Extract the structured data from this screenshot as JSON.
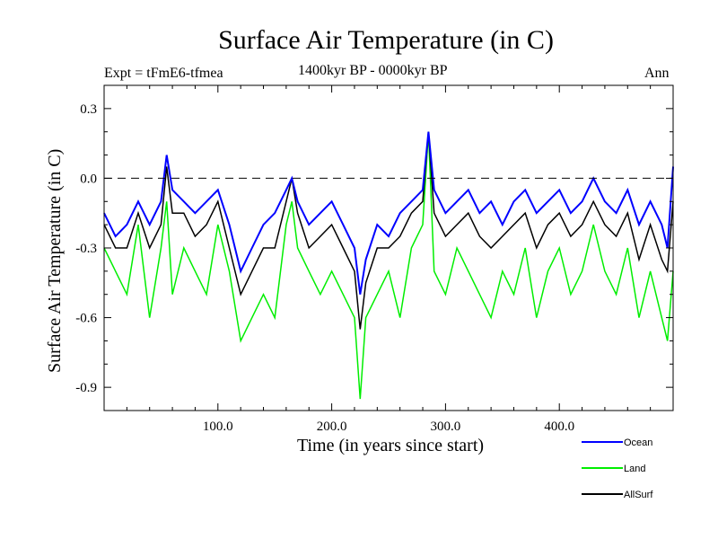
{
  "chart_data": {
    "type": "line",
    "title": "Surface Air Temperature (in C)",
    "subtitle_left": "Expt = tFmE6-tfmea",
    "subtitle_center": "1400kyr BP - 0000kyr BP",
    "subtitle_right": "Ann",
    "xlabel": "Time (in years since start)",
    "ylabel": "Surface Air Temperature (in C)",
    "xlim": [
      0,
      500
    ],
    "ylim": [
      -1.0,
      0.4
    ],
    "xticks": [
      100,
      200,
      300,
      400
    ],
    "xtick_labels": [
      "100.0",
      "200.0",
      "300.0",
      "400.0"
    ],
    "yticks": [
      0.3,
      0.0,
      -0.3,
      -0.6,
      -0.9
    ],
    "ytick_labels": [
      "0.3",
      "0.0",
      "-0.3",
      "-0.6",
      "-0.9"
    ],
    "reference_line": 0.0,
    "legend_position": "bottom-right outside plot",
    "series": [
      {
        "name": "Ocean",
        "color": "#0000ff",
        "x": [
          0,
          10,
          20,
          30,
          40,
          50,
          55,
          60,
          70,
          80,
          90,
          100,
          110,
          120,
          130,
          140,
          150,
          160,
          165,
          170,
          180,
          190,
          200,
          210,
          220,
          225,
          230,
          240,
          250,
          260,
          270,
          280,
          285,
          290,
          300,
          310,
          320,
          330,
          340,
          350,
          360,
          370,
          380,
          390,
          400,
          410,
          420,
          430,
          440,
          450,
          460,
          470,
          480,
          490,
          495,
          500
        ],
        "values": [
          -0.15,
          -0.25,
          -0.2,
          -0.1,
          -0.2,
          -0.1,
          0.1,
          -0.05,
          -0.1,
          -0.15,
          -0.1,
          -0.05,
          -0.2,
          -0.4,
          -0.3,
          -0.2,
          -0.15,
          -0.05,
          0.0,
          -0.1,
          -0.2,
          -0.15,
          -0.1,
          -0.2,
          -0.3,
          -0.5,
          -0.35,
          -0.2,
          -0.25,
          -0.15,
          -0.1,
          -0.05,
          0.2,
          -0.05,
          -0.15,
          -0.1,
          -0.05,
          -0.15,
          -0.1,
          -0.2,
          -0.1,
          -0.05,
          -0.15,
          -0.1,
          -0.05,
          -0.15,
          -0.1,
          0.0,
          -0.1,
          -0.15,
          -0.05,
          -0.2,
          -0.1,
          -0.2,
          -0.3,
          0.05
        ]
      },
      {
        "name": "Land",
        "color": "#00ee00",
        "x": [
          0,
          10,
          20,
          30,
          40,
          50,
          55,
          60,
          70,
          80,
          90,
          100,
          110,
          120,
          130,
          140,
          150,
          160,
          165,
          170,
          180,
          190,
          200,
          210,
          220,
          225,
          230,
          240,
          250,
          260,
          270,
          280,
          285,
          290,
          300,
          310,
          320,
          330,
          340,
          350,
          360,
          370,
          380,
          390,
          400,
          410,
          420,
          430,
          440,
          450,
          460,
          470,
          480,
          490,
          495,
          500
        ],
        "values": [
          -0.3,
          -0.4,
          -0.5,
          -0.2,
          -0.6,
          -0.3,
          -0.1,
          -0.5,
          -0.3,
          -0.4,
          -0.5,
          -0.2,
          -0.4,
          -0.7,
          -0.6,
          -0.5,
          -0.6,
          -0.2,
          -0.1,
          -0.3,
          -0.4,
          -0.5,
          -0.4,
          -0.5,
          -0.6,
          -0.95,
          -0.6,
          -0.5,
          -0.4,
          -0.6,
          -0.3,
          -0.2,
          0.2,
          -0.4,
          -0.5,
          -0.3,
          -0.4,
          -0.5,
          -0.6,
          -0.4,
          -0.5,
          -0.3,
          -0.6,
          -0.4,
          -0.3,
          -0.5,
          -0.4,
          -0.2,
          -0.4,
          -0.5,
          -0.3,
          -0.6,
          -0.4,
          -0.6,
          -0.7,
          -0.4
        ]
      },
      {
        "name": "AllSurf",
        "color": "#000000",
        "x": [
          0,
          10,
          20,
          30,
          40,
          50,
          55,
          60,
          70,
          80,
          90,
          100,
          110,
          120,
          130,
          140,
          150,
          160,
          165,
          170,
          180,
          190,
          200,
          210,
          220,
          225,
          230,
          240,
          250,
          260,
          270,
          280,
          285,
          290,
          300,
          310,
          320,
          330,
          340,
          350,
          360,
          370,
          380,
          390,
          400,
          410,
          420,
          430,
          440,
          450,
          460,
          470,
          480,
          490,
          495,
          500
        ],
        "values": [
          -0.2,
          -0.3,
          -0.3,
          -0.15,
          -0.3,
          -0.2,
          0.05,
          -0.15,
          -0.15,
          -0.25,
          -0.2,
          -0.1,
          -0.3,
          -0.5,
          -0.4,
          -0.3,
          -0.3,
          -0.1,
          0.0,
          -0.15,
          -0.3,
          -0.25,
          -0.2,
          -0.3,
          -0.4,
          -0.65,
          -0.45,
          -0.3,
          -0.3,
          -0.25,
          -0.15,
          -0.1,
          0.2,
          -0.15,
          -0.25,
          -0.2,
          -0.15,
          -0.25,
          -0.3,
          -0.25,
          -0.2,
          -0.15,
          -0.3,
          -0.2,
          -0.15,
          -0.25,
          -0.2,
          -0.1,
          -0.2,
          -0.25,
          -0.15,
          -0.35,
          -0.2,
          -0.35,
          -0.4,
          -0.1
        ]
      }
    ]
  }
}
